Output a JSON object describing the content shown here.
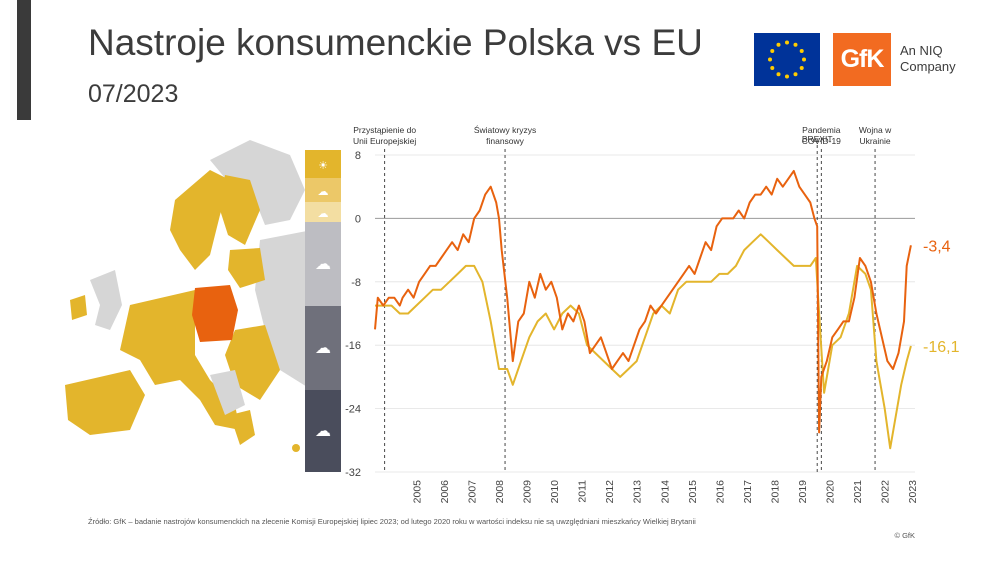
{
  "header": {
    "title": "Nastroje konsumenckie Polska vs EU",
    "subtitle": "07/2023",
    "gfk_logo": "GfK",
    "gfk_tagline_1": "An NIQ",
    "gfk_tagline_2": "Company"
  },
  "colors": {
    "poland": "#e8620f",
    "eu": "#e3b52c",
    "map_gray": "#d6d6d6",
    "legend": [
      "#e3b52c",
      "#ecc868",
      "#f3dea2",
      "#bdbdc2",
      "#9a9aa3",
      "#6f707b",
      "#4a4d5c"
    ]
  },
  "legend_icons": [
    "sun-icon",
    "sun-cloud-icon",
    "cloud-sun-icon",
    "cloud-icon",
    "rain-cloud-icon",
    "storm-cloud-icon"
  ],
  "chart_data": {
    "type": "line",
    "ylim": [
      -32,
      8
    ],
    "yticks": [
      "8",
      "0",
      "-8",
      "-16",
      "-24",
      "-32"
    ],
    "ytick_values": [
      8,
      0,
      -8,
      -16,
      -24,
      -32
    ],
    "xticks": [
      "2005",
      "2006",
      "2007",
      "2008",
      "2009",
      "2010",
      "2011",
      "2012",
      "2013",
      "2014",
      "2015",
      "2016",
      "2017",
      "2018",
      "2019",
      "2020",
      "2021",
      "2022",
      "2023"
    ],
    "series": [
      {
        "key": "poland",
        "end_label": "-3,4",
        "points": [
          [
            2004.0,
            -14
          ],
          [
            2004.1,
            -10
          ],
          [
            2004.3,
            -11
          ],
          [
            2004.5,
            -10
          ],
          [
            2004.7,
            -10
          ],
          [
            2004.9,
            -11
          ],
          [
            2005.0,
            -10
          ],
          [
            2005.2,
            -9
          ],
          [
            2005.4,
            -10
          ],
          [
            2005.6,
            -8
          ],
          [
            2005.8,
            -7
          ],
          [
            2006.0,
            -6
          ],
          [
            2006.2,
            -6
          ],
          [
            2006.4,
            -5
          ],
          [
            2006.6,
            -4
          ],
          [
            2006.8,
            -3
          ],
          [
            2007.0,
            -4
          ],
          [
            2007.2,
            -2
          ],
          [
            2007.4,
            -3
          ],
          [
            2007.6,
            0
          ],
          [
            2007.8,
            1
          ],
          [
            2008.0,
            3
          ],
          [
            2008.2,
            4
          ],
          [
            2008.4,
            2
          ],
          [
            2008.5,
            0
          ],
          [
            2008.6,
            -4
          ],
          [
            2008.8,
            -10
          ],
          [
            2009.0,
            -18
          ],
          [
            2009.2,
            -13
          ],
          [
            2009.4,
            -12
          ],
          [
            2009.6,
            -8
          ],
          [
            2009.8,
            -10
          ],
          [
            2010.0,
            -7
          ],
          [
            2010.2,
            -9
          ],
          [
            2010.4,
            -8
          ],
          [
            2010.6,
            -10
          ],
          [
            2010.8,
            -14
          ],
          [
            2011.0,
            -12
          ],
          [
            2011.2,
            -13
          ],
          [
            2011.4,
            -11
          ],
          [
            2011.6,
            -13
          ],
          [
            2011.8,
            -17
          ],
          [
            2012.0,
            -16
          ],
          [
            2012.2,
            -15
          ],
          [
            2012.4,
            -17
          ],
          [
            2012.6,
            -19
          ],
          [
            2012.8,
            -18
          ],
          [
            2013.0,
            -17
          ],
          [
            2013.2,
            -18
          ],
          [
            2013.4,
            -16
          ],
          [
            2013.6,
            -14
          ],
          [
            2013.8,
            -13
          ],
          [
            2014.0,
            -11
          ],
          [
            2014.2,
            -12
          ],
          [
            2014.4,
            -11
          ],
          [
            2014.6,
            -10
          ],
          [
            2014.8,
            -9
          ],
          [
            2015.0,
            -8
          ],
          [
            2015.2,
            -7
          ],
          [
            2015.4,
            -6
          ],
          [
            2015.6,
            -7
          ],
          [
            2015.8,
            -5
          ],
          [
            2016.0,
            -3
          ],
          [
            2016.2,
            -4
          ],
          [
            2016.4,
            -1
          ],
          [
            2016.6,
            0
          ],
          [
            2016.8,
            0
          ],
          [
            2017.0,
            0
          ],
          [
            2017.2,
            1
          ],
          [
            2017.4,
            0
          ],
          [
            2017.6,
            2
          ],
          [
            2017.8,
            3
          ],
          [
            2018.0,
            3
          ],
          [
            2018.2,
            4
          ],
          [
            2018.4,
            3
          ],
          [
            2018.6,
            5
          ],
          [
            2018.8,
            4
          ],
          [
            2019.0,
            5
          ],
          [
            2019.2,
            6
          ],
          [
            2019.4,
            4
          ],
          [
            2019.6,
            3
          ],
          [
            2019.8,
            2
          ],
          [
            2019.95,
            0
          ],
          [
            2020.05,
            -1
          ],
          [
            2020.12,
            -27
          ],
          [
            2020.2,
            -20
          ],
          [
            2020.4,
            -18
          ],
          [
            2020.6,
            -15
          ],
          [
            2020.8,
            -14
          ],
          [
            2021.0,
            -13
          ],
          [
            2021.2,
            -13
          ],
          [
            2021.4,
            -10
          ],
          [
            2021.6,
            -5
          ],
          [
            2021.8,
            -6
          ],
          [
            2022.0,
            -8
          ],
          [
            2022.2,
            -12
          ],
          [
            2022.4,
            -15
          ],
          [
            2022.6,
            -18
          ],
          [
            2022.8,
            -19
          ],
          [
            2023.0,
            -17
          ],
          [
            2023.2,
            -13
          ],
          [
            2023.3,
            -6
          ],
          [
            2023.45,
            -3.4
          ]
        ]
      },
      {
        "key": "eu",
        "end_label": "-16,1",
        "points": [
          [
            2004.0,
            -11
          ],
          [
            2004.3,
            -11
          ],
          [
            2004.6,
            -11
          ],
          [
            2004.9,
            -12
          ],
          [
            2005.2,
            -12
          ],
          [
            2005.5,
            -11
          ],
          [
            2005.8,
            -10
          ],
          [
            2006.1,
            -9
          ],
          [
            2006.4,
            -9
          ],
          [
            2006.7,
            -8
          ],
          [
            2007.0,
            -7
          ],
          [
            2007.3,
            -6
          ],
          [
            2007.6,
            -6
          ],
          [
            2007.9,
            -8
          ],
          [
            2008.2,
            -13
          ],
          [
            2008.5,
            -19
          ],
          [
            2008.8,
            -19
          ],
          [
            2009.0,
            -21
          ],
          [
            2009.3,
            -18
          ],
          [
            2009.6,
            -15
          ],
          [
            2009.9,
            -13
          ],
          [
            2010.2,
            -12
          ],
          [
            2010.5,
            -14
          ],
          [
            2010.8,
            -12
          ],
          [
            2011.1,
            -11
          ],
          [
            2011.4,
            -12
          ],
          [
            2011.7,
            -16
          ],
          [
            2012.0,
            -17
          ],
          [
            2012.3,
            -18
          ],
          [
            2012.6,
            -19
          ],
          [
            2012.9,
            -20
          ],
          [
            2013.2,
            -19
          ],
          [
            2013.5,
            -18
          ],
          [
            2013.8,
            -15
          ],
          [
            2014.1,
            -12
          ],
          [
            2014.4,
            -11
          ],
          [
            2014.7,
            -12
          ],
          [
            2015.0,
            -9
          ],
          [
            2015.3,
            -8
          ],
          [
            2015.6,
            -8
          ],
          [
            2015.9,
            -8
          ],
          [
            2016.2,
            -8
          ],
          [
            2016.5,
            -7
          ],
          [
            2016.8,
            -7
          ],
          [
            2017.1,
            -6
          ],
          [
            2017.4,
            -4
          ],
          [
            2017.7,
            -3
          ],
          [
            2018.0,
            -2
          ],
          [
            2018.3,
            -3
          ],
          [
            2018.6,
            -4
          ],
          [
            2018.9,
            -5
          ],
          [
            2019.2,
            -6
          ],
          [
            2019.5,
            -6
          ],
          [
            2019.8,
            -6
          ],
          [
            2020.0,
            -5
          ],
          [
            2020.12,
            -12
          ],
          [
            2020.3,
            -22
          ],
          [
            2020.6,
            -16
          ],
          [
            2020.9,
            -15
          ],
          [
            2021.2,
            -12
          ],
          [
            2021.5,
            -6
          ],
          [
            2021.8,
            -7
          ],
          [
            2022.0,
            -9
          ],
          [
            2022.2,
            -18
          ],
          [
            2022.5,
            -24
          ],
          [
            2022.7,
            -29
          ],
          [
            2022.9,
            -25
          ],
          [
            2023.1,
            -21
          ],
          [
            2023.3,
            -18
          ],
          [
            2023.45,
            -16.1
          ]
        ]
      }
    ],
    "annotations": [
      {
        "x": 2004.35,
        "lines": [
          "Przystąpienie do",
          "Unii Europejskiej"
        ]
      },
      {
        "x": 2008.72,
        "lines": [
          "Światowy kryzys",
          "finansowy"
        ]
      },
      {
        "x": 2020.05,
        "lines": [
          "BREXIT"
        ]
      },
      {
        "x": 2020.2,
        "lines": [
          "Pandemia",
          "COVID-19"
        ]
      },
      {
        "x": 2022.15,
        "lines": [
          "Wojna w",
          "Ukrainie"
        ]
      }
    ]
  },
  "footer": {
    "source": "Źródło: GfK – badanie nastrojów konsumenckich na zlecenie Komisji Europejskiej lipiec 2023; od lutego 2020 roku w wartości indeksu nie są uwzględniani mieszkańcy Wielkiej Brytanii",
    "copyright": "© GfK"
  }
}
